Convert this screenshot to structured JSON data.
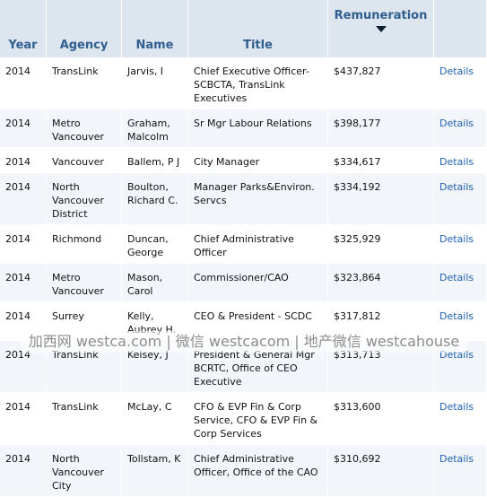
{
  "headers": {
    "year": "Year",
    "agency": "Agency",
    "name": "Name",
    "title": "Title",
    "remuneration": "Remuneration"
  },
  "sort_icon": "sort-descending-icon",
  "rows": [
    {
      "year": "2014",
      "agency": "TransLink",
      "name": "Jarvis, I",
      "title": "Chief Executive Officer-SCBCTA, TransLink Executives",
      "remuneration": "$437,827",
      "details": "Details"
    },
    {
      "year": "2014",
      "agency": "Metro Vancouver",
      "name": "Graham, Malcolm",
      "title": "Sr Mgr Labour Relations",
      "remuneration": "$398,177",
      "details": "Details"
    },
    {
      "year": "2014",
      "agency": "Vancouver",
      "name": "Ballem, P J",
      "title": "City Manager",
      "remuneration": "$334,617",
      "details": "Details"
    },
    {
      "year": "2014",
      "agency": "North Vancouver District",
      "name": "Boulton, Richard C.",
      "title": "Manager Parks&Environ. Servcs",
      "remuneration": "$334,192",
      "details": "Details"
    },
    {
      "year": "2014",
      "agency": "Richmond",
      "name": "Duncan, George",
      "title": "Chief Administrative Officer",
      "remuneration": "$325,929",
      "details": "Details"
    },
    {
      "year": "2014",
      "agency": "Metro Vancouver",
      "name": "Mason, Carol",
      "title": "Commissioner/CAO",
      "remuneration": "$323,864",
      "details": "Details"
    },
    {
      "year": "2014",
      "agency": "Surrey",
      "name": "Kelly, Aubrey H.",
      "title": "CEO & President - SCDC",
      "remuneration": "$317,812",
      "details": "Details"
    },
    {
      "year": "2014",
      "agency": "TransLink",
      "name": "Kelsey, J",
      "title": "President & General Mgr BCRTC, Office of CEO Executive",
      "remuneration": "$313,713",
      "details": "Details"
    },
    {
      "year": "2014",
      "agency": "TransLink",
      "name": "McLay, C",
      "title": "CFO & EVP Fin & Corp Service, CFO & EVP Fin & Corp Services",
      "remuneration": "$313,600",
      "details": "Details"
    },
    {
      "year": "2014",
      "agency": "North Vancouver City",
      "name": "Tollstam, K",
      "title": "Chief Administrative Officer, Office of the CAO",
      "remuneration": "$310,692",
      "details": "Details"
    }
  ],
  "watermark": "加西网 westca.com | 微信 westcacom | 地产微信 westcahouse"
}
